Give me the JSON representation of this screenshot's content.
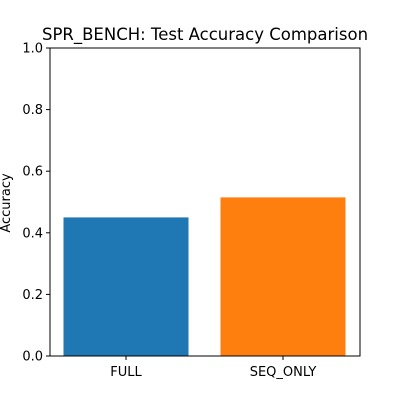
{
  "chart_data": {
    "type": "bar",
    "title": "SPR_BENCH: Test Accuracy Comparison",
    "xlabel": "",
    "ylabel": "Accuracy",
    "categories": [
      "FULL",
      "SEQ_ONLY"
    ],
    "values": [
      0.45,
      0.515
    ],
    "colors": [
      "#1f77b4",
      "#ff7f0e"
    ],
    "ylim": [
      0,
      1.0
    ],
    "yticks": [
      "0.0",
      "0.2",
      "0.4",
      "0.6",
      "0.8",
      "1.0"
    ],
    "grid": false,
    "legend": "none"
  }
}
